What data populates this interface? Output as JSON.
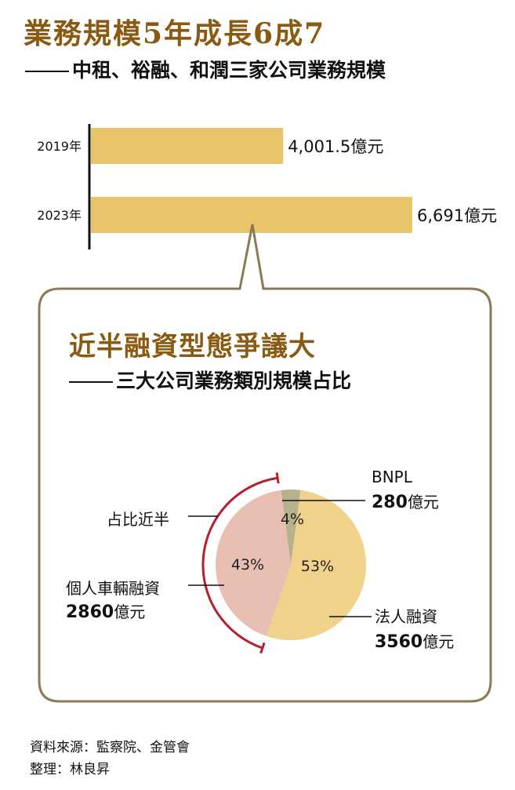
{
  "title": "業務規模5年成長6成7",
  "subtitle": "中租、裕融、和潤三家公司業務規模",
  "chart_data": [
    {
      "type": "bar",
      "orientation": "horizontal",
      "categories": [
        "2019年",
        "2023年"
      ],
      "values": [
        4001.5,
        6691
      ],
      "value_labels": [
        "4,001.5億元",
        "6,691億元"
      ],
      "unit": "億元",
      "bar_color": "#E8C46A"
    },
    {
      "type": "pie",
      "title": "近半融資型態爭議大",
      "subtitle": "三大公司業務類別規模占比",
      "slices": [
        {
          "name": "法人融資",
          "value": 3560,
          "percent": 53,
          "percent_label": "53%",
          "amount_label": "3560",
          "color": "#F0D28A"
        },
        {
          "name": "個人車輛融資",
          "value": 2860,
          "percent": 43,
          "percent_label": "43%",
          "amount_label": "2860",
          "color": "#E8BFB2"
        },
        {
          "name": "BNPL",
          "value": 280,
          "percent": 4,
          "percent_label": "4%",
          "amount_label": "280",
          "color": "#B9B08C"
        }
      ],
      "unit": "億元",
      "annotation": "占比近半",
      "annotation_color": "#B5202E"
    }
  ],
  "footer": {
    "source": "資料來源：監察院、金管會",
    "editor": "整理：林良昇"
  },
  "colors": {
    "frame": "#8C7A54",
    "title_brown": "#8A5A12"
  }
}
